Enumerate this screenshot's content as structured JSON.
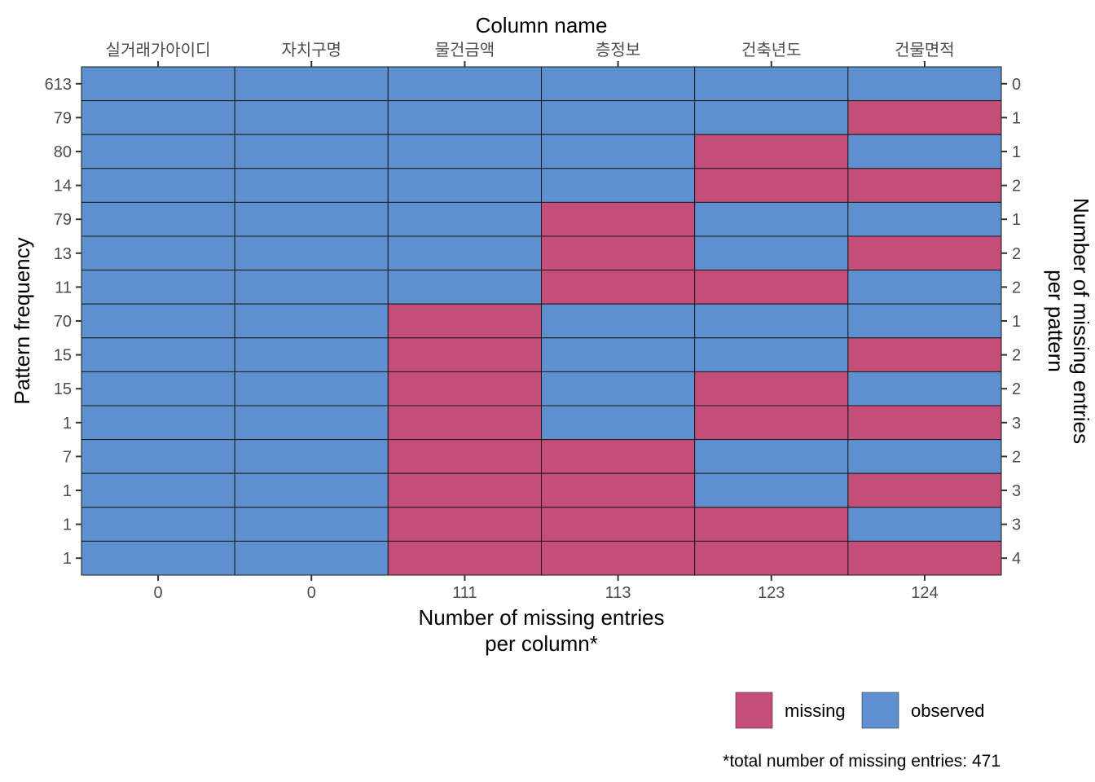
{
  "chart_data": {
    "type": "heatmap",
    "top_title": "Column name",
    "columns": [
      "실거래가아이디",
      "자치구명",
      "물건금액",
      "층정보",
      "건축년도",
      "건물면적"
    ],
    "missing_per_column": [
      "0",
      "0",
      "111",
      "113",
      "123",
      "124"
    ],
    "pattern_frequency": [
      "613",
      "79",
      "80",
      "14",
      "79",
      "13",
      "11",
      "70",
      "15",
      "15",
      "1",
      "7",
      "1",
      "1",
      "1"
    ],
    "missing_per_pattern": [
      "0",
      "1",
      "1",
      "2",
      "1",
      "2",
      "2",
      "1",
      "2",
      "2",
      "3",
      "2",
      "3",
      "3",
      "4"
    ],
    "patterns": [
      [
        0,
        0,
        0,
        0,
        0,
        0
      ],
      [
        0,
        0,
        0,
        0,
        0,
        1
      ],
      [
        0,
        0,
        0,
        0,
        1,
        0
      ],
      [
        0,
        0,
        0,
        0,
        1,
        1
      ],
      [
        0,
        0,
        0,
        1,
        0,
        0
      ],
      [
        0,
        0,
        0,
        1,
        0,
        1
      ],
      [
        0,
        0,
        0,
        1,
        1,
        0
      ],
      [
        0,
        0,
        1,
        0,
        0,
        0
      ],
      [
        0,
        0,
        1,
        0,
        0,
        1
      ],
      [
        0,
        0,
        1,
        0,
        1,
        0
      ],
      [
        0,
        0,
        1,
        0,
        1,
        1
      ],
      [
        0,
        0,
        1,
        1,
        0,
        0
      ],
      [
        0,
        0,
        1,
        1,
        0,
        1
      ],
      [
        0,
        0,
        1,
        1,
        1,
        0
      ],
      [
        0,
        0,
        1,
        1,
        1,
        1
      ]
    ],
    "ylabel_left": "Pattern frequency",
    "ylabel_right": [
      "Number of missing entries",
      "per pattern"
    ],
    "xlabel_bottom": [
      "Number of missing entries",
      "per column*"
    ],
    "legend": [
      {
        "label": "missing",
        "color": "#c44e78"
      },
      {
        "label": "observed",
        "color": "#5e90d0"
      }
    ],
    "caption": "*total number of missing entries: 471",
    "colors": {
      "missing": "#c44e78",
      "observed": "#5e90d0"
    }
  }
}
